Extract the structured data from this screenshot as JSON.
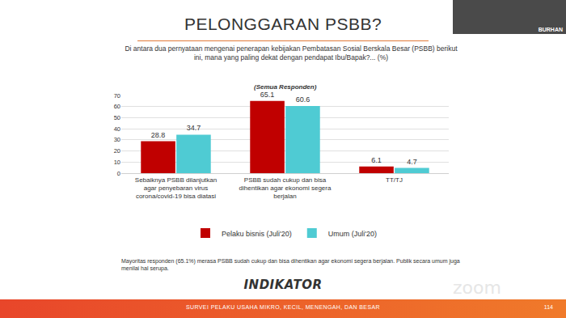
{
  "chart_data": {
    "type": "bar",
    "title": "PELONGGARAN PSBB?",
    "subtitle": "Di antara dua pernyataan mengenai penerapan kebijakan Pembatasan Sosial Berskala Besar (PSBB) berikut ini, mana yang paling dekat dengan pendapat Ibu/Bapak?... (%)",
    "annotations": [
      "(Semua Responden)",
      "Mayoritas responden (65.1%) merasa PSBB sudah cukup dan bisa dihentikan agar ekonomi segera berjalan. Publik secara umum juga menilai hal serupa."
    ],
    "categories": [
      "Sebaiknya PSBB dilanjutkan agar penyebaran virus corona/covid-19 bisa diatasi",
      "PSBB sudah cukup dan bisa dihentikan agar ekonomi segera berjalan",
      "TT/TJ"
    ],
    "series": [
      {
        "name": "Pelaku bisnis (Juli'20)",
        "color": "#c00000",
        "values": [
          28.8,
          65.1,
          6.1
        ]
      },
      {
        "name": "Umum (Juli'20)",
        "color": "#4fcbd3",
        "values": [
          34.7,
          60.6,
          4.7
        ]
      }
    ],
    "ylim": [
      0,
      70
    ],
    "yticks": [
      0,
      10,
      20,
      30,
      40,
      50,
      60,
      70
    ],
    "grid": true,
    "data_labels": true,
    "legend": "bottom"
  },
  "slide": {
    "logo": "INDIKATOR",
    "footer": "SURVEI PELAKU USAHA MIKRO, KECIL, MENENGAH, DAN BESAR",
    "page": "114",
    "speaker": "BURHAN",
    "watermark": "zoom"
  }
}
